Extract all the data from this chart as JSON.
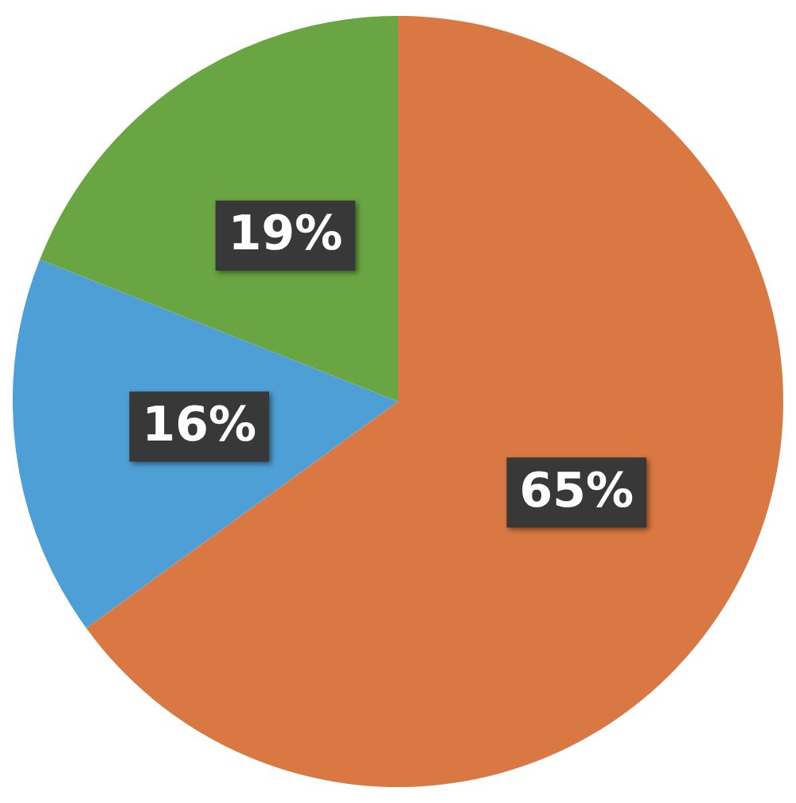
{
  "chart_data": {
    "type": "pie",
    "categories": [
      null,
      null,
      null
    ],
    "values": [
      65,
      16,
      19
    ],
    "value_labels": [
      "65%",
      "16%",
      "19%"
    ],
    "colors": [
      "#d97842",
      "#4e9fd5",
      "#6aa543"
    ],
    "legend": false
  }
}
